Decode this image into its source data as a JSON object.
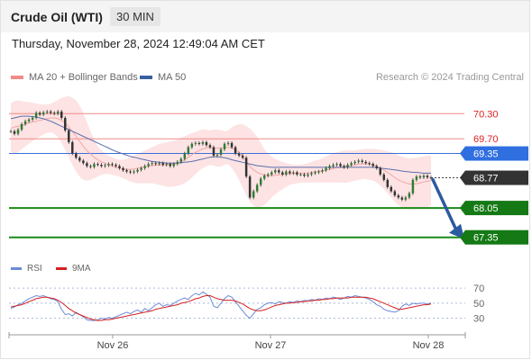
{
  "header": {
    "title": "Crude Oil (WTI)",
    "timeframe": "30 MIN"
  },
  "timestamp": "Thursday, November 28, 2024 12:49:04 AM CET",
  "legend": {
    "ma20": {
      "label": "MA 20 + Bollinger Bands",
      "color": "#f08a8a"
    },
    "ma50": {
      "label": "MA 50",
      "color": "#3a5fa0"
    },
    "credit": "Research © 2024 Trading Central"
  },
  "rsi_legend": {
    "rsi": {
      "label": "RSI",
      "color": "#6b8ad6"
    },
    "ma9": {
      "label": "9MA",
      "color": "#d42020"
    }
  },
  "chart_data": {
    "type": "line",
    "ylim": [
      67.0,
      70.65
    ],
    "current_price": 68.77,
    "levels": [
      {
        "value": 70.3,
        "label": "70.30",
        "kind": "resistance"
      },
      {
        "value": 69.7,
        "label": "69.70",
        "kind": "resistance"
      },
      {
        "value": 69.35,
        "label": "69.35",
        "kind": "pivot"
      },
      {
        "value": 68.05,
        "label": "68.05",
        "kind": "support"
      },
      {
        "value": 67.35,
        "label": "67.35",
        "kind": "support"
      }
    ],
    "x_ticks": [
      "Nov 26",
      "Nov 27",
      "Nov 28"
    ],
    "price_series": [
      69.88,
      69.82,
      69.92,
      70.05,
      70.12,
      70.16,
      70.2,
      70.32,
      70.28,
      70.33,
      70.35,
      70.32,
      70.3,
      70.35,
      70.2,
      69.9,
      69.62,
      69.35,
      69.25,
      69.18,
      69.12,
      69.05,
      69.03,
      69.1,
      69.08,
      69.05,
      69.07,
      69.1,
      69.08,
      69.05,
      69.0,
      68.95,
      68.92,
      68.9,
      68.92,
      68.96,
      69.0,
      69.05,
      69.1,
      69.12,
      69.1,
      69.12,
      69.08,
      69.1,
      69.05,
      69.1,
      69.15,
      69.22,
      69.35,
      69.5,
      69.58,
      69.6,
      69.58,
      69.62,
      69.55,
      69.5,
      69.3,
      69.32,
      69.45,
      69.58,
      69.6,
      69.5,
      69.35,
      69.3,
      69.25,
      68.8,
      68.3,
      68.45,
      68.6,
      68.75,
      68.82,
      68.85,
      68.9,
      68.95,
      68.9,
      68.85,
      68.92,
      68.88,
      68.9,
      68.85,
      68.85,
      68.82,
      68.85,
      68.88,
      68.9,
      68.92,
      68.95,
      69.0,
      69.05,
      69.08,
      69.1,
      69.05,
      69.02,
      69.08,
      69.12,
      69.15,
      69.18,
      69.15,
      69.12,
      69.1,
      69.05,
      69.0,
      68.85,
      68.72,
      68.55,
      68.45,
      68.35,
      68.3,
      68.25,
      68.3,
      68.4,
      68.72,
      68.8,
      68.78,
      68.82,
      68.78,
      68.77
    ],
    "ma20": [
      69.95,
      69.98,
      70.0,
      70.02,
      70.05,
      70.08,
      70.1,
      70.12,
      70.14,
      70.16,
      70.18,
      70.2,
      70.2,
      70.18,
      70.14,
      70.08,
      69.98,
      69.88,
      69.76,
      69.64,
      69.52,
      69.42,
      69.34,
      69.26,
      69.2,
      69.15,
      69.12,
      69.08,
      69.05,
      69.02,
      69.0,
      68.98,
      68.97,
      68.97,
      68.98,
      69.0,
      69.02,
      69.03,
      69.05,
      69.06,
      69.07,
      69.08,
      69.08,
      69.08,
      69.09,
      69.1,
      69.12,
      69.15,
      69.2,
      69.26,
      69.32,
      69.38,
      69.42,
      69.46,
      69.48,
      69.5,
      69.48,
      69.48,
      69.48,
      69.49,
      69.5,
      69.48,
      69.45,
      69.38,
      69.28,
      69.16,
      69.04,
      68.96,
      68.9,
      68.86,
      68.84,
      68.82,
      68.82,
      68.83,
      68.84,
      68.85,
      68.86,
      68.87,
      68.87,
      68.88,
      68.88,
      68.88,
      68.89,
      68.9,
      68.91,
      68.92,
      68.93,
      68.95,
      68.97,
      68.99,
      69.01,
      69.02,
      69.04,
      69.05,
      69.06,
      69.08,
      69.1,
      69.1,
      69.11,
      69.1,
      69.08,
      69.05,
      69.0,
      68.95,
      68.9,
      68.84,
      68.78,
      68.72,
      68.68,
      68.65,
      68.62,
      68.62,
      68.63,
      68.65,
      68.67,
      68.69,
      68.7
    ],
    "bb_upper": [
      70.55,
      70.6,
      70.62,
      70.6,
      70.58,
      70.58,
      70.56,
      70.54,
      70.53,
      70.52,
      70.52,
      70.54,
      70.58,
      70.62,
      70.68,
      70.7,
      70.72,
      70.68,
      70.62,
      70.5,
      70.32,
      70.1,
      69.88,
      69.68,
      69.52,
      69.42,
      69.36,
      69.3,
      69.26,
      69.22,
      69.2,
      69.2,
      69.22,
      69.26,
      69.3,
      69.35,
      69.38,
      69.42,
      69.46,
      69.5,
      69.54,
      69.58,
      69.6,
      69.62,
      69.64,
      69.66,
      69.68,
      69.72,
      69.76,
      69.8,
      69.84,
      69.86,
      69.9,
      69.92,
      69.92,
      69.9,
      69.92,
      69.92,
      69.9,
      69.88,
      69.9,
      69.98,
      70.02,
      70.05,
      70.05,
      70.0,
      69.95,
      69.85,
      69.75,
      69.6,
      69.45,
      69.35,
      69.28,
      69.22,
      69.18,
      69.15,
      69.12,
      69.1,
      69.08,
      69.08,
      69.08,
      69.1,
      69.12,
      69.15,
      69.18,
      69.2,
      69.24,
      69.28,
      69.32,
      69.35,
      69.38,
      69.4,
      69.42,
      69.42,
      69.42,
      69.42,
      69.44,
      69.45,
      69.46,
      69.46,
      69.46,
      69.45,
      69.44,
      69.42,
      69.4,
      69.38,
      69.35,
      69.3,
      69.28,
      69.25,
      69.23,
      69.24,
      69.25,
      69.26,
      69.28,
      69.3,
      69.3
    ],
    "bb_lower": [
      69.4,
      69.35,
      69.38,
      69.45,
      69.52,
      69.58,
      69.64,
      69.7,
      69.75,
      69.8,
      69.84,
      69.86,
      69.82,
      69.74,
      69.6,
      69.44,
      69.26,
      69.08,
      68.92,
      68.8,
      68.72,
      68.7,
      68.72,
      68.76,
      68.8,
      68.84,
      68.86,
      68.86,
      68.84,
      68.82,
      68.8,
      68.76,
      68.72,
      68.68,
      68.66,
      68.64,
      68.64,
      68.64,
      68.64,
      68.64,
      68.62,
      68.6,
      68.58,
      68.56,
      68.55,
      68.56,
      68.58,
      68.6,
      68.64,
      68.7,
      68.78,
      68.86,
      68.94,
      69.0,
      69.04,
      69.08,
      69.06,
      69.04,
      69.04,
      69.08,
      69.1,
      69.0,
      68.88,
      68.72,
      68.54,
      68.36,
      68.2,
      68.1,
      68.06,
      68.08,
      68.12,
      68.2,
      68.3,
      68.38,
      68.44,
      68.5,
      68.55,
      68.6,
      68.62,
      68.64,
      68.65,
      68.66,
      68.66,
      68.66,
      68.66,
      68.66,
      68.66,
      68.66,
      68.66,
      68.66,
      68.66,
      68.66,
      68.65,
      68.66,
      68.68,
      68.7,
      68.72,
      68.74,
      68.74,
      68.72,
      68.7,
      68.66,
      68.58,
      68.5,
      68.4,
      68.3,
      68.2,
      68.12,
      68.06,
      68.04,
      68.02,
      68.02,
      68.02,
      68.04,
      68.06,
      68.08,
      68.1
    ],
    "ma50": [
      70.18,
      70.2,
      70.22,
      70.24,
      70.24,
      70.24,
      70.23,
      70.22,
      70.2,
      70.18,
      70.15,
      70.12,
      70.08,
      70.04,
      70.0,
      69.96,
      69.92,
      69.88,
      69.84,
      69.8,
      69.76,
      69.72,
      69.68,
      69.64,
      69.6,
      69.56,
      69.52,
      69.48,
      69.44,
      69.4,
      69.37,
      69.34,
      69.31,
      69.28,
      69.26,
      69.24,
      69.22,
      69.2,
      69.18,
      69.16,
      69.15,
      69.14,
      69.13,
      69.12,
      69.12,
      69.12,
      69.12,
      69.13,
      69.14,
      69.15,
      69.16,
      69.18,
      69.2,
      69.22,
      69.24,
      69.26,
      69.27,
      69.27,
      69.26,
      69.25,
      69.23,
      69.2,
      69.18,
      69.16,
      69.14,
      69.12,
      69.1,
      69.08,
      69.06,
      69.05,
      69.04,
      69.03,
      69.02,
      69.02,
      69.02,
      69.02,
      69.02,
      69.02,
      69.02,
      69.02,
      69.02,
      69.02,
      69.02,
      69.02,
      69.02,
      69.02,
      69.02,
      69.02,
      69.02,
      69.02,
      69.02,
      69.02,
      69.02,
      69.02,
      69.02,
      69.02,
      69.02,
      69.02,
      69.02,
      69.02,
      69.02,
      69.01,
      69.0,
      68.99,
      68.98,
      68.97,
      68.96,
      68.95,
      68.93,
      68.92,
      68.91,
      68.9,
      68.9,
      68.89,
      68.88,
      68.88,
      68.88
    ],
    "rsi": {
      "ylim": [
        20,
        75
      ],
      "ticks": [
        70,
        50,
        30
      ],
      "rsi": [
        43,
        45,
        48,
        50,
        53,
        56,
        58,
        60,
        59,
        60,
        58,
        56,
        55,
        52,
        42,
        35,
        36,
        33,
        38,
        35,
        32,
        28,
        27,
        27,
        28,
        30,
        29,
        31,
        30,
        32,
        34,
        36,
        38,
        36,
        39,
        41,
        38,
        43,
        40,
        44,
        48,
        50,
        46,
        48,
        47,
        50,
        53,
        55,
        57,
        55,
        60,
        63,
        61,
        65,
        62,
        58,
        46,
        44,
        50,
        56,
        60,
        58,
        52,
        46,
        40,
        34,
        30,
        36,
        42,
        44,
        48,
        50,
        51,
        49,
        52,
        51,
        50,
        52,
        51,
        53,
        52,
        54,
        53,
        55,
        54,
        56,
        55,
        57,
        56,
        58,
        57,
        55,
        57,
        59,
        58,
        60,
        59,
        58,
        57,
        55,
        52,
        48,
        46,
        42,
        40,
        39,
        38,
        40,
        46,
        49,
        47,
        50,
        49,
        50,
        50,
        49,
        50
      ],
      "ma9": [
        45,
        46,
        47,
        48,
        50,
        52,
        54,
        56,
        57,
        58,
        58,
        57,
        56,
        54,
        51,
        47,
        43,
        40,
        37,
        35,
        33,
        31,
        29,
        28,
        27,
        27,
        28,
        28,
        29,
        30,
        31,
        32,
        33,
        34,
        35,
        36,
        37,
        38,
        39,
        40,
        42,
        43,
        44,
        45,
        46,
        47,
        48,
        50,
        51,
        52,
        54,
        56,
        57,
        59,
        60,
        60,
        58,
        56,
        55,
        54,
        54,
        54,
        53,
        51,
        49,
        46,
        43,
        41,
        40,
        40,
        41,
        43,
        45,
        47,
        48,
        49,
        50,
        50,
        51,
        51,
        52,
        52,
        53,
        53,
        54,
        54,
        55,
        55,
        56,
        56,
        57,
        57,
        57,
        57,
        58,
        58,
        58,
        58,
        58,
        57,
        56,
        54,
        52,
        50,
        48,
        46,
        44,
        42,
        42,
        43,
        44,
        45,
        46,
        47,
        48,
        48,
        49
      ]
    }
  }
}
